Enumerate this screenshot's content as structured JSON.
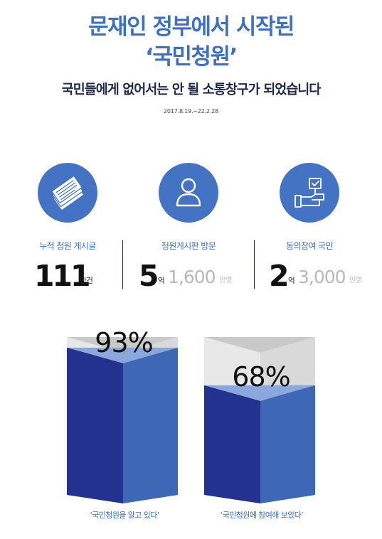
{
  "header": {
    "title_line1": "문재인 정부에서 시작된",
    "title_line2": "‘국민청원’",
    "subtitle": "국민들에게 없어서는 안 될 소통창구가 되었습니다",
    "period": "2017.8.19.~22.2.28"
  },
  "stats": [
    {
      "label": "누적 청원 게시글",
      "icon": "documents-stack-icon",
      "main": "111",
      "main_unit": "만건"
    },
    {
      "label": "청원게시판 방문",
      "icon": "person-icon",
      "main": "5",
      "main_unit": "억",
      "secondary": "1,600",
      "secondary_unit": "만명"
    },
    {
      "label": "동의참여 국민",
      "icon": "hand-checkbox-icon",
      "main": "2",
      "main_unit": "억",
      "secondary": "3,000",
      "secondary_unit": "만명"
    }
  ],
  "colors": {
    "accent": "#3d6fc2",
    "circle": "#4473c4",
    "bar_front": "#23318f",
    "bar_side": "#3e68b6",
    "bar_top_fill": "#8aa8dd",
    "empty_front": "#e8e8e8",
    "empty_side": "#d9d9d9",
    "empty_top": "#c9c9c9"
  },
  "chart_data": {
    "type": "bar",
    "categories": [
      "‘국민청원을 알고 있다’",
      "‘국민청원에 참여해 보았다’"
    ],
    "values": [
      93,
      68
    ],
    "value_labels": [
      "93%",
      "68%"
    ],
    "ylim": [
      0,
      100
    ]
  }
}
